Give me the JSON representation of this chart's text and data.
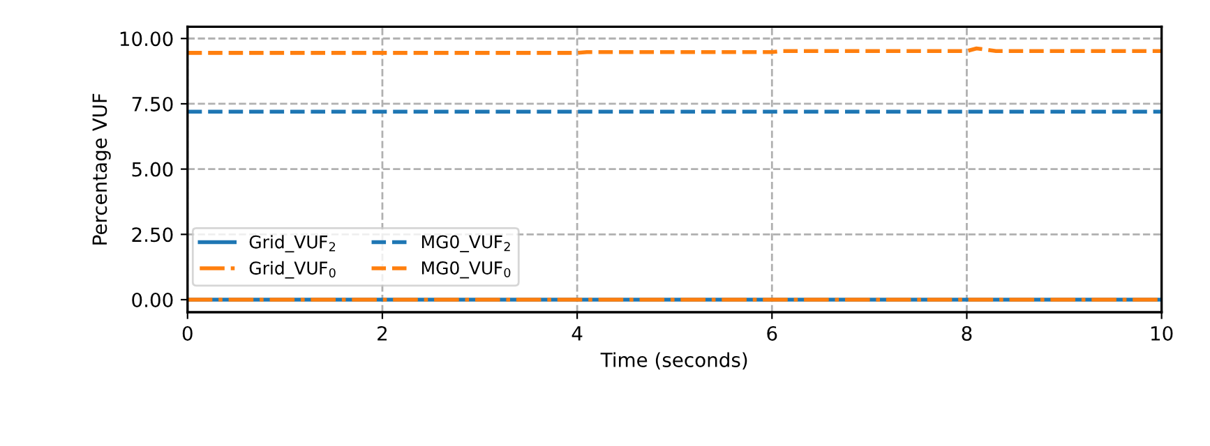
{
  "chart_data": {
    "type": "line",
    "xlabel": "Time (seconds)",
    "ylabel": "Percentage VUF",
    "x": [
      0,
      2,
      4,
      4.1,
      6,
      6.1,
      8,
      8.1,
      8.3,
      10
    ],
    "series": [
      {
        "name": "Grid_VUF$_{2}$",
        "color": "#1f77b4",
        "line_style": "solid",
        "values": [
          0,
          0,
          0,
          0,
          0,
          0,
          0,
          0,
          0,
          0
        ]
      },
      {
        "name": "MG0_VUF$_{2}$",
        "color": "#1f77b4",
        "line_style": "dashed",
        "values": [
          7.2,
          7.2,
          7.2,
          7.2,
          7.2,
          7.2,
          7.2,
          7.2,
          7.2,
          7.2
        ]
      },
      {
        "name": "Grid_VUF$_{0}$",
        "color": "#ff7f0e",
        "line_style": "dashdot",
        "values": [
          0,
          0,
          0,
          0,
          0,
          0,
          0,
          0,
          0,
          0
        ]
      },
      {
        "name": "MG0_VUF$_{0}$",
        "color": "#ff7f0e",
        "line_style": "dashed",
        "values": [
          9.45,
          9.45,
          9.45,
          9.48,
          9.48,
          9.52,
          9.52,
          9.62,
          9.52,
          9.52
        ]
      }
    ],
    "xlim": [
      0,
      10
    ],
    "xticks": [
      0,
      2,
      4,
      6,
      8,
      10
    ],
    "ylim": [
      -0.48,
      10.45
    ],
    "yticks": [
      {
        "value": 0,
        "label": "0.00"
      },
      {
        "value": 2.5,
        "label": "2.50"
      },
      {
        "value": 5,
        "label": "5.00"
      },
      {
        "value": 7.5,
        "label": "7.50"
      },
      {
        "value": 10,
        "label": "10.00"
      }
    ],
    "grid": true,
    "legend": "bottom left",
    "marker": "none"
  }
}
